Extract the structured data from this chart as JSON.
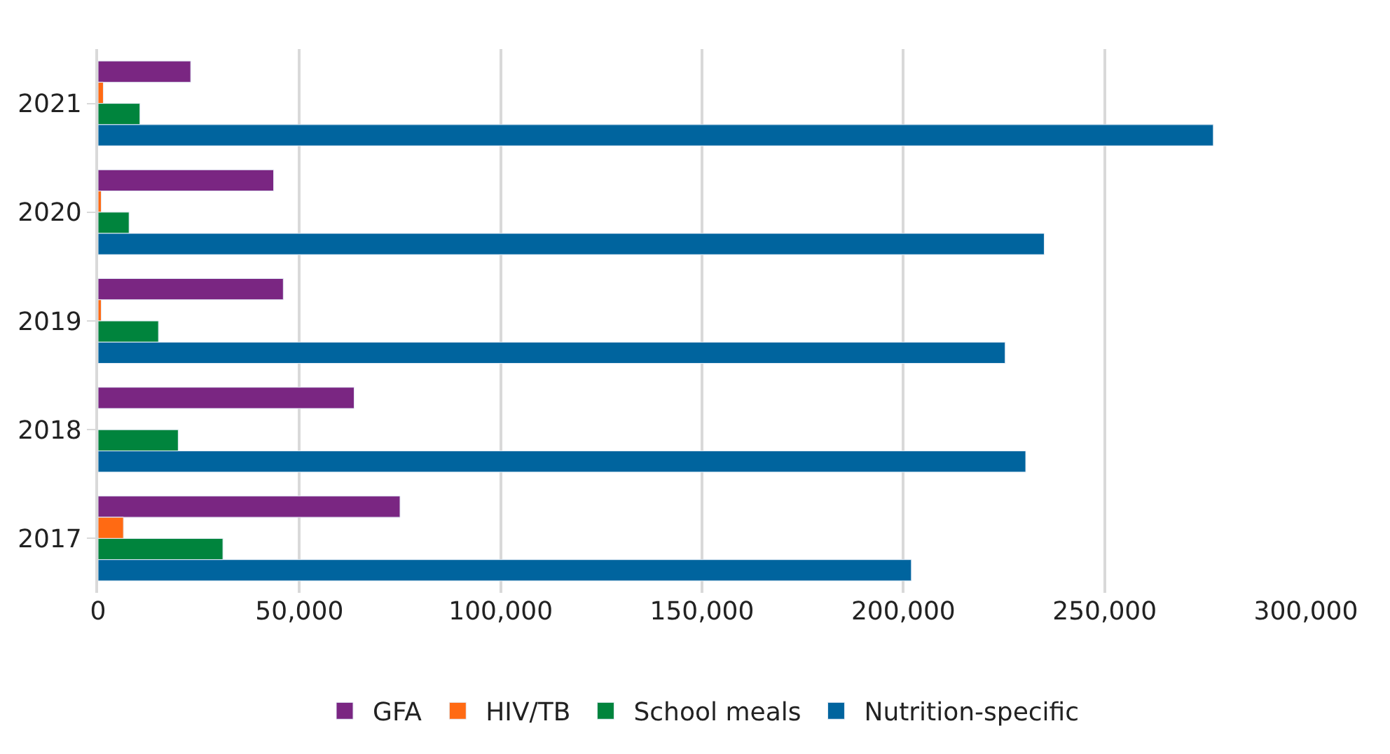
{
  "chart_data": {
    "type": "bar",
    "orientation": "horizontal",
    "categories": [
      "2021",
      "2020",
      "2019",
      "2018",
      "2017"
    ],
    "series": [
      {
        "name": "GFA",
        "color": "#7a2682",
        "values": [
          23000,
          43600,
          46000,
          63600,
          75000
        ]
      },
      {
        "name": "HIV/TB",
        "color": "#ff6a13",
        "values": [
          1300,
          800,
          800,
          null,
          6300
        ]
      },
      {
        "name": "School meals",
        "color": "#00843d",
        "values": [
          10400,
          7700,
          15000,
          19900,
          31000
        ]
      },
      {
        "name": "Nutrition-specific",
        "color": "#00649e",
        "values": [
          277000,
          235000,
          225300,
          230400,
          202000
        ]
      }
    ],
    "xlim": [
      0,
      300000
    ],
    "xticks": [
      {
        "value": 0,
        "label": "0"
      },
      {
        "value": 50000,
        "label": "50,000"
      },
      {
        "value": 100000,
        "label": "100,000"
      },
      {
        "value": 150000,
        "label": "150,000"
      },
      {
        "value": 200000,
        "label": "200,000"
      },
      {
        "value": 250000,
        "label": "250,000"
      },
      {
        "value": 300000,
        "label": "300,000"
      }
    ],
    "grid": "x",
    "legend": "bottom"
  }
}
